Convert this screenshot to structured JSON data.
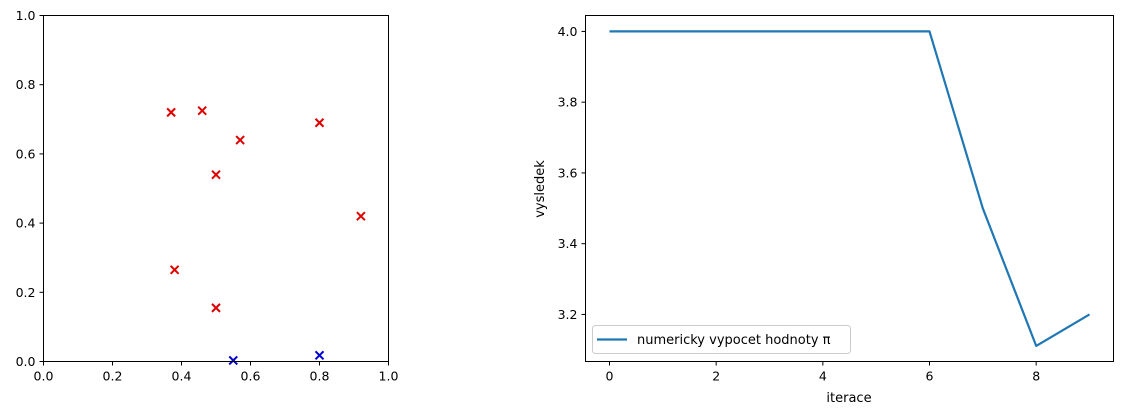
{
  "chart_data": [
    {
      "type": "scatter",
      "marker": "x",
      "xlim": [
        0,
        1
      ],
      "ylim": [
        0,
        1
      ],
      "xticks": [
        "0.0",
        "0.2",
        "0.4",
        "0.6",
        "0.8",
        "1.0"
      ],
      "yticks": [
        "0.0",
        "0.2",
        "0.4",
        "0.6",
        "0.8",
        "1.0"
      ],
      "grid": false,
      "series": [
        {
          "color": "#e00000",
          "points": [
            [
              0.37,
              0.72
            ],
            [
              0.46,
              0.725
            ],
            [
              0.57,
              0.64
            ],
            [
              0.8,
              0.69
            ],
            [
              0.5,
              0.54
            ],
            [
              0.92,
              0.42
            ],
            [
              0.38,
              0.265
            ],
            [
              0.5,
              0.155
            ]
          ]
        },
        {
          "color": "#0000d0",
          "points": [
            [
              0.55,
              0.003
            ],
            [
              0.8,
              0.018
            ]
          ]
        }
      ]
    },
    {
      "type": "line",
      "xlabel": "iterace",
      "ylabel": "vysledek",
      "xlim": [
        -0.45,
        9.45
      ],
      "ylim": [
        3.067,
        4.045
      ],
      "xticks": [
        "0",
        "2",
        "4",
        "6",
        "8"
      ],
      "yticks": [
        "3.2",
        "3.4",
        "3.6",
        "3.8",
        "4.0"
      ],
      "grid": false,
      "legend_position": "lower-left",
      "series": [
        {
          "name": "numericky vypocet hodnoty π",
          "color": "#1f77b4",
          "x": [
            0,
            1,
            2,
            3,
            4,
            5,
            6,
            7,
            8,
            9
          ],
          "y": [
            4.0,
            4.0,
            4.0,
            4.0,
            4.0,
            4.0,
            4.0,
            3.5,
            3.111,
            3.2
          ]
        }
      ]
    }
  ]
}
